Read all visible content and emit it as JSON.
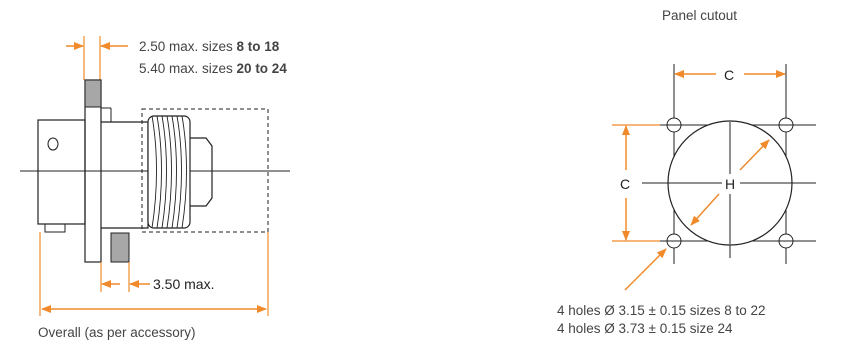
{
  "colors": {
    "dimension": "#f08a2b",
    "outline": "#222222",
    "text": "#444444",
    "flange": "#a7a7a7"
  },
  "left": {
    "flange_note_1_prefix": "2.50 max. sizes ",
    "flange_note_1_bold": "8 to 18",
    "flange_note_2_prefix": "5.40 max. sizes ",
    "flange_note_2_bold": "20 to 24",
    "depth_label": "3.50 max.",
    "overall_label": "Overall (as per accessory)"
  },
  "right": {
    "title": "Panel cutout",
    "dim_c_horizontal": "C",
    "dim_c_vertical": "C",
    "dim_h": "H",
    "holes_note_1": "4 holes Ø 3.15 ± 0.15 sizes 8 to 22",
    "holes_note_2": "4 holes Ø 3.73 ± 0.15 size 24"
  }
}
